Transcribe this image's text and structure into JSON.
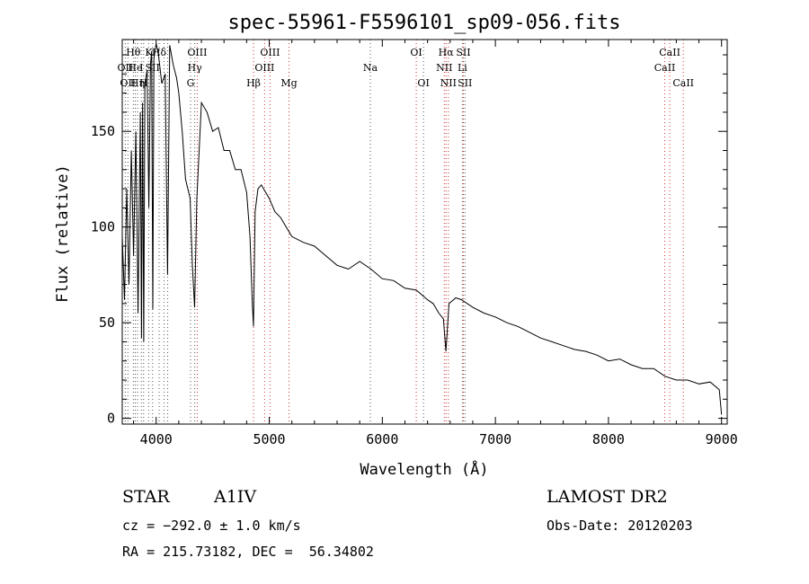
{
  "chart_data": {
    "type": "line",
    "title": "spec-55961-F5596101_sp09-056.fits",
    "xlabel": "Wavelength (Å)",
    "ylabel": "Flux (relative)",
    "xlim": [
      3700,
      9050
    ],
    "ylim": [
      -3,
      198
    ],
    "xticks": [
      4000,
      5000,
      6000,
      7000,
      8000,
      9000
    ],
    "yticks": [
      0,
      50,
      100,
      150
    ],
    "grid": false,
    "series": [
      {
        "color": "#000000",
        "x": [
          3700,
          3720,
          3740,
          3760,
          3780,
          3800,
          3820,
          3840,
          3860,
          3870,
          3880,
          3890,
          3900,
          3920,
          3935,
          3950,
          3960,
          3970,
          3980,
          4000,
          4020,
          4050,
          4080,
          4101,
          4120,
          4150,
          4180,
          4200,
          4230,
          4260,
          4300,
          4320,
          4340,
          4360,
          4400,
          4450,
          4500,
          4550,
          4600,
          4650,
          4700,
          4750,
          4800,
          4830,
          4850,
          4861,
          4875,
          4900,
          4930,
          4950,
          5000,
          5050,
          5100,
          5150,
          5200,
          5300,
          5400,
          5500,
          5600,
          5700,
          5800,
          5900,
          6000,
          6100,
          6200,
          6300,
          6400,
          6450,
          6500,
          6540,
          6563,
          6590,
          6650,
          6700,
          6800,
          6900,
          7000,
          7100,
          7200,
          7300,
          7400,
          7500,
          7600,
          7700,
          7800,
          7900,
          8000,
          8100,
          8200,
          8300,
          8400,
          8500,
          8600,
          8700,
          8800,
          8900,
          8980,
          9000
        ],
        "y": [
          95,
          62,
          120,
          70,
          140,
          85,
          150,
          55,
          160,
          42,
          165,
          40,
          175,
          182,
          110,
          185,
          192,
          57,
          188,
          196,
          190,
          175,
          180,
          75,
          195,
          185,
          178,
          170,
          150,
          125,
          115,
          80,
          58,
          115,
          165,
          160,
          150,
          152,
          140,
          140,
          130,
          130,
          118,
          95,
          60,
          48,
          108,
          120,
          122,
          120,
          115,
          108,
          105,
          100,
          95,
          92,
          90,
          85,
          80,
          78,
          82,
          78,
          73,
          72,
          68,
          67,
          62,
          60,
          55,
          52,
          35,
          60,
          63,
          62,
          58,
          55,
          53,
          50,
          48,
          45,
          42,
          40,
          38,
          36,
          35,
          33,
          30,
          31,
          28,
          26,
          26,
          22,
          20,
          20,
          18,
          19,
          15,
          2
        ]
      }
    ],
    "lines": [
      {
        "wavelength": 3727,
        "color": "#555555",
        "row": 1,
        "label": "OII"
      },
      {
        "wavelength": 3750,
        "color": "#555555",
        "row": 2,
        "label": "OII"
      },
      {
        "wavelength": 3798,
        "color": "#555555",
        "row": 0,
        "label": "Hθ"
      },
      {
        "wavelength": 3815,
        "color": "#555555",
        "row": 1,
        "label": "He"
      },
      {
        "wavelength": 3835,
        "color": "#555555",
        "row": 2,
        "label": "Hη"
      },
      {
        "wavelength": 3869,
        "color": "#555555",
        "row": 1,
        "label": "I"
      },
      {
        "wavelength": 3889,
        "color": "#555555",
        "row": 2,
        "label": "H"
      },
      {
        "wavelength": 3934,
        "color": "#555555",
        "row": 0,
        "label": "K"
      },
      {
        "wavelength": 3968,
        "color": "#555555",
        "row": 1,
        "label": "SII"
      },
      {
        "wavelength": 4026,
        "color": "#555555",
        "row": 0,
        "label": "Hδ"
      },
      {
        "wavelength": 4070,
        "color": "#555555",
        "row": 0,
        "label": ""
      },
      {
        "wavelength": 4102,
        "color": "#555555",
        "row": 0,
        "label": ""
      },
      {
        "wavelength": 4304,
        "color": "#555555",
        "row": 2,
        "label": "G"
      },
      {
        "wavelength": 4341,
        "color": "#555555",
        "row": 1,
        "label": "Hγ"
      },
      {
        "wavelength": 4363,
        "color": "#cc3333",
        "row": 0,
        "label": "OIII"
      },
      {
        "wavelength": 4861,
        "color": "#cc3333",
        "row": 2,
        "label": "Hβ"
      },
      {
        "wavelength": 4959,
        "color": "#cc3333",
        "row": 1,
        "label": "OIII"
      },
      {
        "wavelength": 5007,
        "color": "#cc3333",
        "row": 0,
        "label": "OIII"
      },
      {
        "wavelength": 5175,
        "color": "#cc3333",
        "row": 2,
        "label": "Mg"
      },
      {
        "wavelength": 5894,
        "color": "#555555",
        "row": 1,
        "label": "Na"
      },
      {
        "wavelength": 6300,
        "color": "#cc3333",
        "row": 0,
        "label": "OI"
      },
      {
        "wavelength": 6364,
        "color": "#555555",
        "row": 2,
        "label": "OI"
      },
      {
        "wavelength": 6548,
        "color": "#cc3333",
        "row": 1,
        "label": "NII"
      },
      {
        "wavelength": 6563,
        "color": "#cc3333",
        "row": 0,
        "label": "Hα"
      },
      {
        "wavelength": 6584,
        "color": "#cc3333",
        "row": 2,
        "label": "NII"
      },
      {
        "wavelength": 6717,
        "color": "#cc3333",
        "row": 0,
        "label": "SII"
      },
      {
        "wavelength": 6708,
        "color": "#555555",
        "row": 1,
        "label": "Li"
      },
      {
        "wavelength": 6731,
        "color": "#555555",
        "row": 2,
        "label": "SII"
      },
      {
        "wavelength": 8498,
        "color": "#cc3333",
        "row": 1,
        "label": "CaII"
      },
      {
        "wavelength": 8542,
        "color": "#cc3333",
        "row": 0,
        "label": "CaII"
      },
      {
        "wavelength": 8662,
        "color": "#cc3333",
        "row": 2,
        "label": "CaII"
      }
    ]
  },
  "info": {
    "object_type": "STAR",
    "subclass": "A1IV",
    "survey": "LAMOST DR2",
    "cz": "cz = −292.0 ± 1.0 km/s",
    "obs_date": "Obs-Date: 20120203",
    "radec": "RA = 215.73182, DEC =  56.34802"
  }
}
